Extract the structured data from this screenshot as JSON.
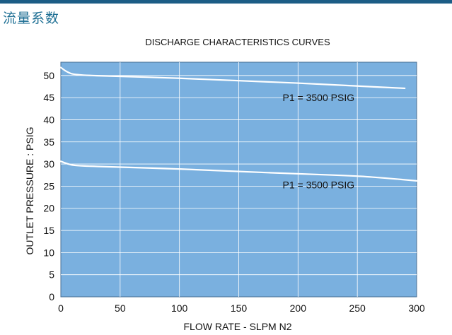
{
  "header": {
    "title": "流量系数"
  },
  "colors": {
    "top_bar": "#1c5d86",
    "title_text": "#1c6e93",
    "plot_bg": "#7ab0df",
    "grid": "#ffffff",
    "curve": "#ffffff",
    "plot_border": "#4a6f93",
    "text": "#111111"
  },
  "chart_data": {
    "type": "line",
    "title": "DISCHARGE CHARACTERISTICS CURVES",
    "xlabel": "FLOW RATE - SLPM N2",
    "ylabel": "OUTLET PRESSURE : PSIG",
    "xlim": [
      0,
      300
    ],
    "ylim": [
      0,
      53
    ],
    "x_ticks": [
      "0",
      "50",
      "100",
      "150",
      "200",
      "250",
      "300"
    ],
    "x_tick_values": [
      0,
      50,
      100,
      150,
      200,
      250,
      300
    ],
    "y_ticks": [
      "0",
      "5",
      "10",
      "15",
      "20",
      "25",
      "30",
      "35",
      "40",
      "45",
      "50"
    ],
    "y_tick_values": [
      0,
      5,
      10,
      15,
      20,
      25,
      30,
      35,
      40,
      45,
      50
    ],
    "grid": true,
    "series": [
      {
        "name": "P1 = 3500 PSIG",
        "label_anchor": {
          "x": 187,
          "y": 45
        },
        "points": [
          {
            "x": 0,
            "y": 51.8
          },
          {
            "x": 5,
            "y": 50.8
          },
          {
            "x": 12,
            "y": 50.1
          },
          {
            "x": 50,
            "y": 49.8
          },
          {
            "x": 100,
            "y": 49.4
          },
          {
            "x": 150,
            "y": 48.8
          },
          {
            "x": 200,
            "y": 48.3
          },
          {
            "x": 250,
            "y": 47.6
          },
          {
            "x": 290,
            "y": 47.1
          }
        ]
      },
      {
        "name": "P1 = 3500 PSIG",
        "label_anchor": {
          "x": 187,
          "y": 25.3
        },
        "points": [
          {
            "x": 0,
            "y": 30.6
          },
          {
            "x": 6,
            "y": 30.0
          },
          {
            "x": 12,
            "y": 29.6
          },
          {
            "x": 50,
            "y": 29.3
          },
          {
            "x": 100,
            "y": 28.9
          },
          {
            "x": 150,
            "y": 28.3
          },
          {
            "x": 200,
            "y": 27.8
          },
          {
            "x": 250,
            "y": 27.3
          },
          {
            "x": 275,
            "y": 26.8
          },
          {
            "x": 300,
            "y": 26.2
          }
        ]
      }
    ]
  }
}
